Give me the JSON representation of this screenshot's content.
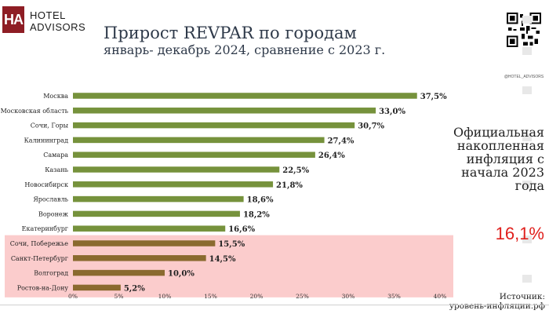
{
  "logo": {
    "mark": "HA",
    "line1": "HOTEL",
    "line2": "ADVISORS"
  },
  "title": "Прирост REVPAR по городам",
  "subtitle": "январь- декабрь 2024, сравнение с 2023 г.",
  "qr_caption": "@HOTEL_ADVISORS",
  "inflation": {
    "text": "Официальная накопленная инфляция с начала 2023 года",
    "value": "16,1%",
    "value_color": "#e0201d"
  },
  "source": {
    "label": "Источник:",
    "name": "уровень-инфляции.рф"
  },
  "colors": {
    "green_bar": "#76923c",
    "highlight_bar": "#8a6a2f",
    "highlight_bg": "#fbcccc"
  },
  "chart_data": {
    "type": "bar",
    "orientation": "horizontal",
    "categories": [
      "Москва",
      "Московская область",
      "Сочи, Горы",
      "Калининград",
      "Самара",
      "Казань",
      "Новосибирск",
      "Ярославль",
      "Воронеж",
      "Екатеринбург",
      "Сочи, Побережье",
      "Санкт-Петербург",
      "Волгоград",
      "Ростов-на-Дону"
    ],
    "values": [
      37.5,
      33.0,
      30.7,
      27.4,
      26.4,
      22.5,
      21.8,
      18.6,
      18.2,
      16.6,
      15.5,
      14.5,
      10.0,
      5.2
    ],
    "value_labels": [
      "37,5%",
      "33,0%",
      "30,7%",
      "27,4%",
      "26,4%",
      "22,5%",
      "21,8%",
      "18,6%",
      "18,2%",
      "16,6%",
      "15,5%",
      "14,5%",
      "10,0%",
      "5,2%"
    ],
    "highlighted_categories": [
      "Сочи, Побережье",
      "Санкт-Петербург",
      "Волгоград",
      "Ростов-на-Дону"
    ],
    "xlim": [
      0,
      40
    ],
    "x_ticks": [
      0,
      5,
      10,
      15,
      20,
      25,
      30,
      35,
      40
    ],
    "x_tick_labels": [
      "0%",
      "5%",
      "10%",
      "15%",
      "20%",
      "25%",
      "30%",
      "35%",
      "40%"
    ],
    "grid": false,
    "legend": "none"
  }
}
